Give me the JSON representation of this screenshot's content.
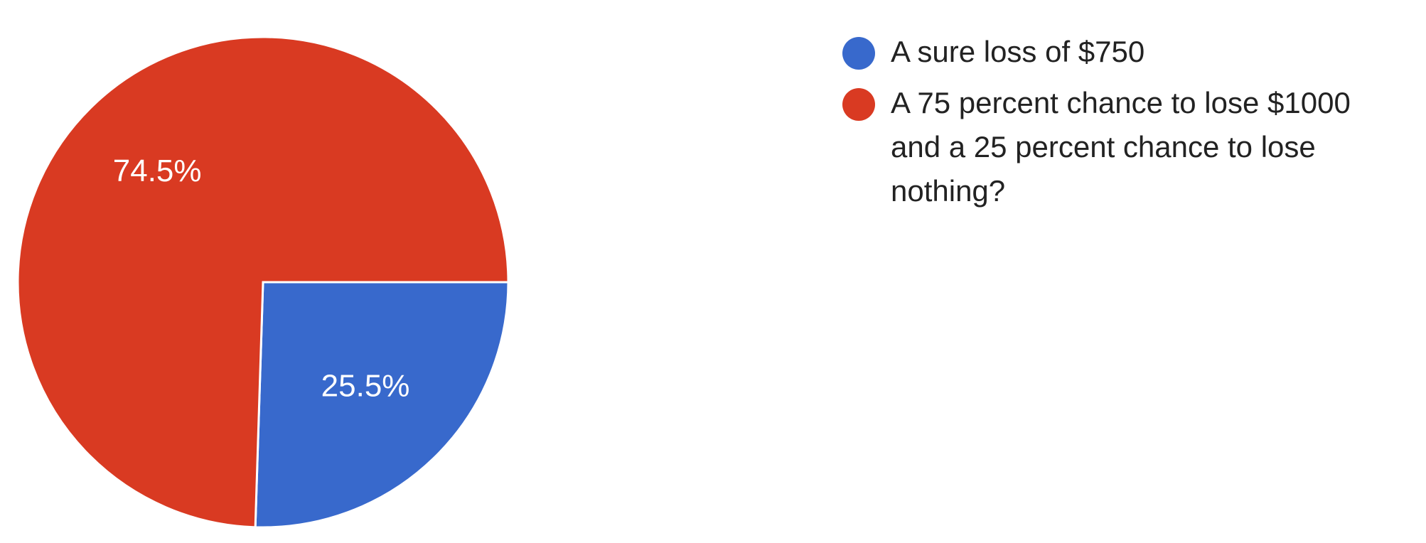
{
  "chart_data": {
    "type": "pie",
    "title": "",
    "categories": [
      "A sure loss of $750",
      "A 75 percent chance to lose $1000 and a 25 percent chance to lose nothing?"
    ],
    "values": [
      25.5,
      74.5
    ],
    "value_labels": [
      "25.5%",
      "74.5%"
    ],
    "colors": [
      "#3869CC",
      "#D93A22"
    ],
    "legend_position": "right",
    "start_angle": "3 o'clock, clockwise"
  },
  "legend": {
    "items": [
      {
        "label": "A sure loss of $750",
        "color": "#3869CC"
      },
      {
        "label": "A 75 percent chance to lose $1000\nand a 25 percent chance to lose\nnothing?",
        "color": "#D93A22"
      }
    ]
  }
}
